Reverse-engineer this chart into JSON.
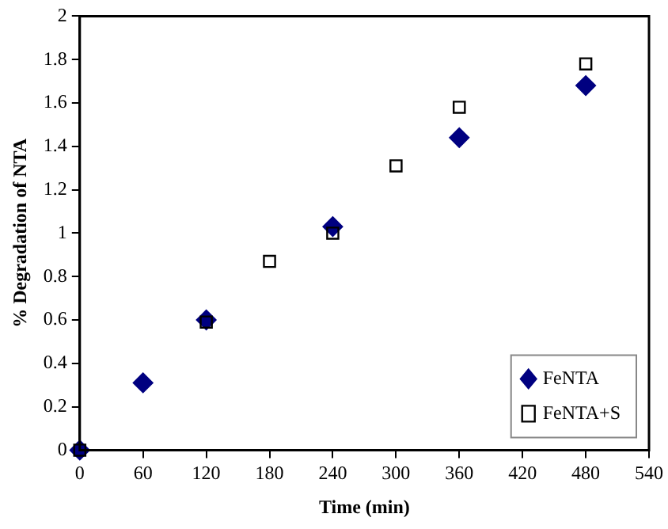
{
  "chart_data": {
    "type": "scatter",
    "xlabel": "Time (min)",
    "ylabel": "% Degradation of NTA",
    "xlim": [
      0,
      540
    ],
    "xticks": [
      0,
      60,
      120,
      180,
      240,
      300,
      360,
      420,
      480,
      540
    ],
    "ylim": [
      0,
      2
    ],
    "yticks": [
      0,
      {
        "value": 0.2,
        "label": "0.2"
      },
      {
        "value": 0.4,
        "label": "0.4"
      },
      {
        "value": 0.6,
        "label": "0.6"
      },
      {
        "value": 0.8,
        "label": "0.8"
      },
      1,
      {
        "value": 1.2,
        "label": "1.2"
      },
      {
        "value": 1.4,
        "label": "1.4"
      },
      {
        "value": 1.6,
        "label": "1.6"
      },
      {
        "value": 1.8,
        "label": "1.8"
      },
      2
    ],
    "grid": false,
    "legend": "bottom right",
    "series": [
      {
        "name": "FeNTA",
        "color": "#000080",
        "marker": "diamond",
        "x": [
          0,
          60,
          120,
          240,
          360,
          480
        ],
        "values": [
          0,
          0.31,
          0.6,
          1.03,
          1.44,
          1.68
        ]
      },
      {
        "name": "FeNTA+S",
        "color": "#000000",
        "marker": "square",
        "x": [
          0,
          120,
          180,
          240,
          300,
          360,
          480
        ],
        "values": [
          0,
          0.59,
          0.87,
          1.0,
          1.31,
          1.58,
          1.78
        ]
      }
    ]
  }
}
